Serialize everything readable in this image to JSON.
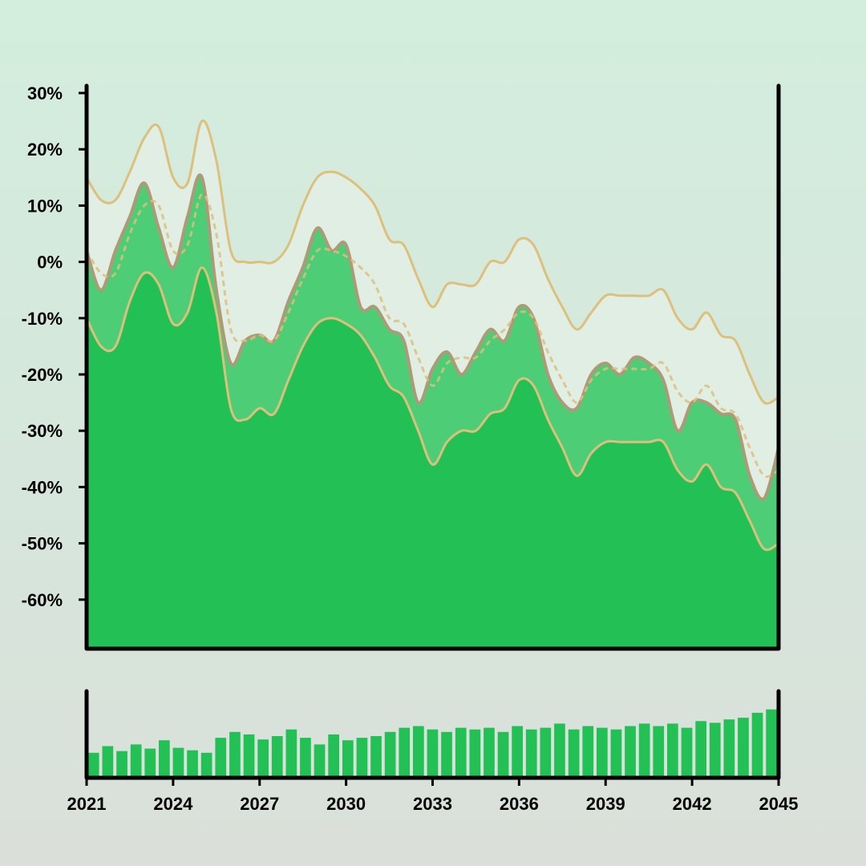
{
  "chart_data": {
    "type": "area",
    "title": "",
    "xlabel": "",
    "ylabel": "",
    "xlim": [
      2021.0,
      2045.0
    ],
    "ylim": [
      -68,
      30
    ],
    "y_ticks": [
      30,
      20,
      10,
      0,
      -10,
      -20,
      -30,
      -40,
      -50,
      -60
    ],
    "y_tick_labels": [
      "30%",
      "20%",
      "10%",
      "0%",
      "-10%",
      "-20%",
      "-30%",
      "-40%",
      "-50%",
      "-60%"
    ],
    "x_ticks": [
      2021,
      2024,
      2027,
      2030,
      2033,
      2036,
      2039,
      2042,
      2045
    ],
    "x_tick_labels": [
      "2021",
      "2024",
      "2027",
      "2030",
      "2033",
      "2036",
      "2039",
      "2042",
      "2045"
    ],
    "grid": false,
    "legend": "none",
    "colors": {
      "lower_area": "#22c055",
      "inner_band": "#4ccd76",
      "outer_band": "#e1eee3",
      "band_line": "#dcc07c",
      "series_edge": "#ad9a76",
      "volume": "#22c055",
      "axis": "#000000"
    },
    "series": [
      {
        "role": "upper band",
        "x": [
          2021.0,
          2021.5,
          2022.0,
          2022.5,
          2023.0,
          2023.5,
          2024.0,
          2024.5,
          2025.0,
          2025.5,
          2026.0,
          2026.5,
          2027.0,
          2027.5,
          2028.0,
          2028.5,
          2029.0,
          2029.5,
          2030.0,
          2030.5,
          2031.0,
          2031.5,
          2032.0,
          2032.5,
          2033.0,
          2033.5,
          2034.0,
          2034.5,
          2035.0,
          2035.5,
          2036.0,
          2036.5,
          2037.0,
          2037.5,
          2038.0,
          2038.5,
          2039.0,
          2039.5,
          2040.0,
          2040.5,
          2041.0,
          2041.5,
          2042.0,
          2042.5,
          2043.0,
          2043.5,
          2044.0,
          2044.5,
          2045.0
        ],
        "values": [
          15,
          11,
          11,
          16,
          22,
          24,
          15,
          14,
          25,
          18,
          2,
          0,
          0,
          0,
          3,
          10,
          15,
          16,
          15,
          13,
          10,
          4,
          3,
          -3,
          -8,
          -4,
          -4,
          -4,
          0,
          0,
          4,
          3,
          -3,
          -8,
          -12,
          -9,
          -6,
          -6,
          -6,
          -6,
          -5,
          -10,
          -12,
          -9,
          -13,
          -14,
          -20,
          -25,
          -24
        ]
      },
      {
        "role": "middle band",
        "x": [
          2021.0,
          2021.5,
          2022.0,
          2022.5,
          2023.0,
          2023.5,
          2024.0,
          2024.5,
          2025.0,
          2025.5,
          2026.0,
          2026.5,
          2027.0,
          2027.5,
          2028.0,
          2028.5,
          2029.0,
          2029.5,
          2030.0,
          2030.5,
          2031.0,
          2031.5,
          2032.0,
          2032.5,
          2033.0,
          2033.5,
          2034.0,
          2034.5,
          2035.0,
          2035.5,
          2036.0,
          2036.5,
          2037.0,
          2037.5,
          2038.0,
          2038.5,
          2039.0,
          2039.5,
          2040.0,
          2040.5,
          2041.0,
          2041.5,
          2042.0,
          2042.5,
          2043.0,
          2043.5,
          2044.0,
          2044.5,
          2045.0
        ],
        "values": [
          2,
          -2,
          -2,
          5,
          10,
          10,
          2,
          3,
          12,
          5,
          -12,
          -14,
          -13,
          -14,
          -9,
          -3,
          2,
          2,
          1,
          -1,
          -4,
          -10,
          -11,
          -17,
          -22,
          -18,
          -17,
          -17,
          -14,
          -12,
          -9,
          -10,
          -16,
          -21,
          -25,
          -21,
          -19,
          -19,
          -19,
          -19,
          -18,
          -23,
          -25,
          -22,
          -26,
          -27,
          -33,
          -38,
          -37
        ]
      },
      {
        "role": "lower band",
        "x": [
          2021.0,
          2021.5,
          2022.0,
          2022.5,
          2023.0,
          2023.5,
          2024.0,
          2024.5,
          2025.0,
          2025.5,
          2026.0,
          2026.5,
          2027.0,
          2027.5,
          2028.0,
          2028.5,
          2029.0,
          2029.5,
          2030.0,
          2030.5,
          2031.0,
          2031.5,
          2032.0,
          2032.5,
          2033.0,
          2033.5,
          2034.0,
          2034.5,
          2035.0,
          2035.5,
          2036.0,
          2036.5,
          2037.0,
          2037.5,
          2038.0,
          2038.5,
          2039.0,
          2039.5,
          2040.0,
          2040.5,
          2041.0,
          2041.5,
          2042.0,
          2042.5,
          2043.0,
          2043.5,
          2044.0,
          2044.5,
          2045.0
        ],
        "values": [
          -10,
          -15,
          -15,
          -7,
          -2,
          -4,
          -11,
          -9,
          -1,
          -9,
          -26,
          -28,
          -26,
          -27,
          -21,
          -15,
          -11,
          -10,
          -11,
          -13,
          -17,
          -22,
          -24,
          -30,
          -36,
          -32,
          -30,
          -30,
          -27,
          -26,
          -21,
          -22,
          -28,
          -33,
          -38,
          -34,
          -32,
          -32,
          -32,
          -32,
          -32,
          -37,
          -39,
          -36,
          -40,
          -41,
          -46,
          -51,
          -50
        ]
      },
      {
        "role": "price",
        "x": [
          2021.0,
          2021.5,
          2022.0,
          2022.5,
          2023.0,
          2023.5,
          2024.0,
          2024.5,
          2025.0,
          2025.5,
          2026.0,
          2026.5,
          2027.0,
          2027.5,
          2028.0,
          2028.5,
          2029.0,
          2029.5,
          2030.0,
          2030.5,
          2031.0,
          2031.5,
          2032.0,
          2032.5,
          2033.0,
          2033.5,
          2034.0,
          2034.5,
          2035.0,
          2035.5,
          2036.0,
          2036.5,
          2037.0,
          2037.5,
          2038.0,
          2038.5,
          2039.0,
          2039.5,
          2040.0,
          2040.5,
          2041.0,
          2041.5,
          2042.0,
          2042.5,
          2043.0,
          2043.5,
          2044.0,
          2044.5,
          2045.0
        ],
        "values": [
          2,
          -5,
          2,
          8,
          14,
          6,
          -1,
          8,
          15,
          -5,
          -18,
          -14,
          -13,
          -14,
          -7,
          -1,
          6,
          2,
          3,
          -8,
          -8,
          -12,
          -14,
          -25,
          -19,
          -16,
          -20,
          -16,
          -12,
          -14,
          -8,
          -10,
          -20,
          -25,
          -26,
          -20,
          -18,
          -20,
          -17,
          -18,
          -21,
          -30,
          -25,
          -25,
          -27,
          -28,
          -38,
          -42,
          -33
        ]
      }
    ],
    "volume": {
      "x": [
        2021.0,
        2021.5,
        2022.0,
        2022.5,
        2023.0,
        2023.5,
        2024.0,
        2024.5,
        2025.0,
        2025.5,
        2026.0,
        2026.5,
        2027.0,
        2027.5,
        2028.0,
        2028.5,
        2029.0,
        2029.5,
        2030.0,
        2030.5,
        2031.0,
        2031.5,
        2032.0,
        2032.5,
        2033.0,
        2033.5,
        2034.0,
        2034.5,
        2035.0,
        2035.5,
        2036.0,
        2036.5,
        2037.0,
        2037.5,
        2038.0,
        2038.5,
        2039.0,
        2039.5,
        2040.0,
        2040.5,
        2041.0,
        2041.5,
        2042.0,
        2042.5,
        2043.0,
        2043.5,
        2044.0,
        2044.5,
        2045.0
      ],
      "values": [
        0.3,
        0.38,
        0.32,
        0.4,
        0.35,
        0.45,
        0.36,
        0.33,
        0.3,
        0.48,
        0.55,
        0.52,
        0.46,
        0.5,
        0.58,
        0.48,
        0.4,
        0.52,
        0.45,
        0.48,
        0.5,
        0.55,
        0.6,
        0.62,
        0.58,
        0.55,
        0.6,
        0.58,
        0.6,
        0.55,
        0.62,
        0.58,
        0.6,
        0.65,
        0.58,
        0.62,
        0.6,
        0.58,
        0.62,
        0.65,
        0.62,
        0.65,
        0.6,
        0.68,
        0.66,
        0.7,
        0.72,
        0.78,
        0.82
      ]
    }
  }
}
